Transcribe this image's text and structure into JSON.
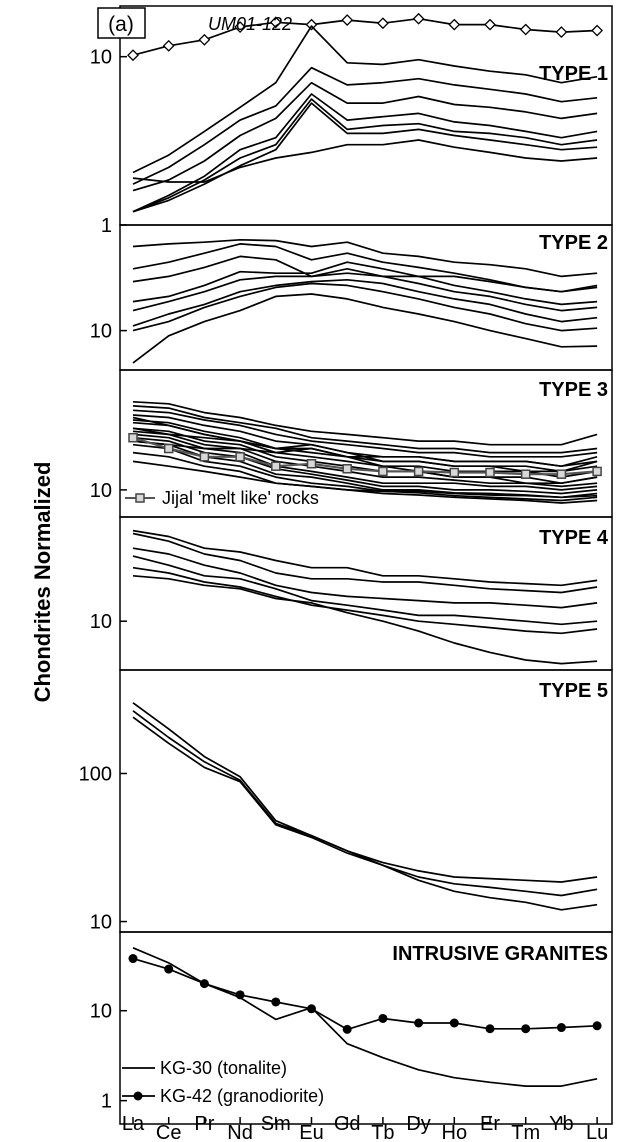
{
  "figure_label": "(a)",
  "ylabel": "Chondrites Normalized",
  "elements": [
    "La",
    "Ce",
    "Pr",
    "Nd",
    "Sm",
    "Eu",
    "Gd",
    "Tb",
    "Dy",
    "Ho",
    "Er",
    "Tm",
    "Yb",
    "Lu"
  ],
  "chart_data": [
    {
      "type": "line",
      "title": "TYPE 1",
      "yscale": "log",
      "ylim": [
        1,
        20
      ],
      "yticks": [
        {
          "value": 1,
          "label": "1"
        },
        {
          "value": 10,
          "label": "10"
        }
      ],
      "annotation": "UM01-122",
      "series": [
        {
          "name": "UM01-122",
          "marker": "diamond",
          "values": [
            10.2,
            11.6,
            12.6,
            15.0,
            16.0,
            15.5,
            16.5,
            15.8,
            16.8,
            15.5,
            15.5,
            14.5,
            14.0,
            14.3
          ]
        },
        {
          "values": [
            2.05,
            2.6,
            3.6,
            5.0,
            7.0,
            15.2,
            9.2,
            9.0,
            9.6,
            8.8,
            8.2,
            7.8,
            7.0,
            7.6
          ]
        },
        {
          "values": [
            1.75,
            2.2,
            3.0,
            4.2,
            5.1,
            8.6,
            6.8,
            7.0,
            7.4,
            6.8,
            6.4,
            6.0,
            5.4,
            5.7
          ]
        },
        {
          "values": [
            1.6,
            1.85,
            2.4,
            3.4,
            4.3,
            7.0,
            5.3,
            5.3,
            5.8,
            5.2,
            5.0,
            4.7,
            4.3,
            4.6
          ]
        },
        {
          "values": [
            1.2,
            1.5,
            1.95,
            2.8,
            3.3,
            6.0,
            4.2,
            4.4,
            4.6,
            4.1,
            3.9,
            3.6,
            3.3,
            3.6
          ]
        },
        {
          "values": [
            1.2,
            1.45,
            1.85,
            2.5,
            3.0,
            5.6,
            3.7,
            3.9,
            4.0,
            3.6,
            3.5,
            3.3,
            3.0,
            3.2
          ]
        },
        {
          "values": [
            1.2,
            1.4,
            1.75,
            2.25,
            2.8,
            5.3,
            3.5,
            3.5,
            3.7,
            3.4,
            3.2,
            3.0,
            2.8,
            2.9
          ]
        },
        {
          "values": [
            1.9,
            1.8,
            1.8,
            2.2,
            2.5,
            2.7,
            3.0,
            3.0,
            3.2,
            2.9,
            2.7,
            2.5,
            2.4,
            2.5
          ]
        }
      ]
    },
    {
      "type": "line",
      "title": "TYPE 2",
      "yscale": "log",
      "ylim": [
        4.5,
        85
      ],
      "yticks": [
        {
          "value": 10,
          "label": "10"
        }
      ],
      "series": [
        {
          "values": [
            55,
            58,
            60,
            63,
            62,
            55,
            60,
            48,
            45,
            40,
            38,
            35,
            30,
            32
          ]
        },
        {
          "values": [
            35,
            40,
            48,
            58,
            55,
            42,
            48,
            40,
            36,
            32,
            28,
            24,
            22,
            25
          ]
        },
        {
          "values": [
            27,
            30,
            36,
            45,
            42,
            30,
            35,
            30,
            26,
            22,
            20,
            17,
            15,
            16
          ]
        },
        {
          "values": [
            18,
            20,
            25,
            33,
            32,
            32,
            40,
            35,
            30,
            25,
            22,
            19,
            17,
            18
          ]
        },
        {
          "values": [
            15,
            18,
            22,
            28,
            30,
            30,
            32,
            30,
            30,
            30,
            27,
            24,
            22,
            24
          ]
        },
        {
          "values": [
            11,
            14,
            17,
            22,
            25,
            27,
            28,
            26,
            22,
            19,
            17,
            14,
            12,
            13
          ]
        },
        {
          "values": [
            10,
            12,
            16,
            20,
            24,
            26,
            25,
            22,
            19,
            16,
            14,
            11.5,
            10,
            10.5
          ]
        },
        {
          "values": [
            5.2,
            9,
            12,
            15,
            20,
            21,
            19,
            16,
            14,
            12,
            10,
            8.5,
            7.2,
            7.3
          ]
        }
      ]
    },
    {
      "type": "line",
      "title": "TYPE 3",
      "yscale": "log",
      "ylim": [
        6.8,
        55
      ],
      "yticks": [
        {
          "value": 10,
          "label": "10"
        }
      ],
      "legend": "Jijal 'melt  like' rocks",
      "series": [
        {
          "values": [
            35,
            34,
            30,
            28,
            25,
            23,
            22,
            21,
            20,
            20,
            19,
            19,
            19,
            22
          ]
        },
        {
          "values": [
            33,
            32,
            28,
            26,
            24,
            21,
            20,
            19,
            18,
            18,
            17,
            17,
            17,
            18
          ]
        },
        {
          "values": [
            31,
            30,
            27,
            25,
            22,
            20,
            19,
            18,
            17,
            17,
            16,
            16,
            16,
            17
          ]
        },
        {
          "values": [
            29,
            28,
            25,
            23,
            20,
            19,
            17,
            16,
            16,
            15,
            15,
            15,
            14,
            15
          ]
        },
        {
          "values": [
            27,
            26,
            23,
            21,
            18,
            18,
            16,
            15,
            15,
            14,
            14,
            14,
            13,
            14
          ]
        },
        {
          "values": [
            26,
            25,
            22,
            20,
            17,
            16,
            15,
            14,
            14,
            13,
            13,
            13,
            12,
            13
          ]
        },
        {
          "values": [
            24,
            23,
            20,
            19,
            16,
            15,
            14,
            13,
            13,
            12,
            12,
            12,
            11,
            12
          ]
        },
        {
          "values": [
            23,
            22,
            19,
            18,
            15,
            14,
            13,
            12,
            12,
            11.5,
            11,
            11,
            10.5,
            11
          ]
        },
        {
          "values": [
            22,
            21,
            18,
            17,
            14,
            13,
            12,
            11,
            11,
            11,
            10.5,
            10.5,
            10,
            10.5
          ]
        },
        {
          "values": [
            21,
            20,
            17,
            16,
            13.5,
            12.5,
            11.5,
            10.5,
            10.5,
            10,
            10,
            9.8,
            9.5,
            10
          ]
        },
        {
          "values": [
            20,
            19,
            16,
            15,
            12.5,
            12,
            11,
            10,
            10,
            9.6,
            9.5,
            9.3,
            9,
            9.5
          ]
        },
        {
          "values": [
            19,
            18,
            15,
            14,
            12,
            11,
            10.5,
            9.8,
            9.6,
            9.2,
            9,
            8.8,
            8.6,
            9
          ]
        },
        {
          "values": [
            17,
            16,
            14,
            13,
            11,
            10.5,
            10,
            9.5,
            9.3,
            9,
            8.8,
            8.6,
            8.3,
            8.6
          ]
        },
        {
          "values": [
            15,
            14,
            13,
            12,
            11,
            10.5,
            10,
            9.8,
            9.8,
            9.5,
            9.3,
            9.2,
            9,
            9.2
          ]
        },
        {
          "values": [
            24,
            22,
            21,
            20,
            18,
            19,
            17,
            15,
            15,
            14,
            14,
            13,
            13,
            15
          ]
        },
        {
          "values": [
            20,
            19,
            18,
            18,
            17,
            18,
            16,
            14,
            13,
            12,
            12,
            11,
            11,
            12
          ]
        },
        {
          "values": [
            28,
            25,
            22,
            20,
            18,
            17,
            16,
            16,
            16,
            15,
            15,
            15,
            14,
            16
          ]
        },
        {
          "name": "Jijal 'melt  like' rocks",
          "marker": "square",
          "values": [
            21,
            18,
            16,
            16,
            14,
            14.5,
            13.5,
            13,
            13,
            12.8,
            12.8,
            12.5,
            12.5,
            13
          ]
        }
      ]
    },
    {
      "type": "line",
      "title": "TYPE 4",
      "yscale": "log",
      "ylim": [
        4.5,
        55
      ],
      "yticks": [
        {
          "value": 10,
          "label": "10"
        }
      ],
      "series": [
        {
          "values": [
            44,
            40,
            33,
            31,
            27,
            24,
            24,
            21,
            21,
            20,
            19,
            18.5,
            18,
            19.5
          ]
        },
        {
          "values": [
            42,
            37,
            30,
            27,
            22,
            20,
            20,
            19,
            19,
            18,
            17,
            16.5,
            16,
            17.5
          ]
        },
        {
          "values": [
            33,
            30,
            25,
            22,
            18,
            16,
            15,
            14.5,
            14,
            13.5,
            13.5,
            13,
            12.5,
            13.5
          ]
        },
        {
          "values": [
            29,
            25,
            21,
            20,
            17,
            14,
            13,
            12,
            11,
            11,
            10.5,
            10,
            9.5,
            10
          ]
        },
        {
          "values": [
            24,
            22,
            19,
            17.5,
            15,
            13,
            12,
            11,
            10,
            9.5,
            9,
            8.5,
            8.2,
            8.8
          ]
        },
        {
          "values": [
            21,
            20,
            18,
            17,
            14.5,
            13.5,
            11.5,
            10,
            8.5,
            7,
            6,
            5.3,
            5,
            5.2
          ]
        }
      ]
    },
    {
      "type": "line",
      "title": "TYPE 5",
      "yscale": "log",
      "ylim": [
        8.5,
        500
      ],
      "yticks": [
        {
          "value": 10,
          "label": "10"
        },
        {
          "value": 100,
          "label": "100"
        }
      ],
      "series": [
        {
          "values": [
            300,
            200,
            130,
            95,
            48,
            38,
            30,
            25,
            22,
            20,
            19.5,
            19,
            18.5,
            20
          ]
        },
        {
          "values": [
            265,
            175,
            120,
            90,
            46,
            38,
            30,
            24,
            20,
            18,
            17,
            16,
            15,
            16.5
          ]
        },
        {
          "values": [
            240,
            160,
            110,
            88,
            45,
            37,
            29,
            24,
            19,
            16,
            14.5,
            13.5,
            12,
            13
          ]
        }
      ]
    },
    {
      "type": "line",
      "title": "INTRUSIVE GRANITES",
      "yscale": "log",
      "ylim": [
        0.55,
        75
      ],
      "yticks": [
        {
          "value": 1,
          "label": "1"
        },
        {
          "value": 10,
          "label": "10"
        }
      ],
      "series": [
        {
          "name": "KG-30 (tonalite)",
          "marker": "none",
          "values": [
            50,
            34,
            20,
            14,
            8,
            10.8,
            4.3,
            3,
            2.2,
            1.8,
            1.6,
            1.45,
            1.45,
            1.75
          ]
        },
        {
          "name": "KG-42 (granodiorite)",
          "marker": "circle",
          "values": [
            38,
            29,
            20,
            15,
            12.5,
            10.5,
            6.2,
            8.2,
            7.3,
            7.3,
            6.3,
            6.3,
            6.5,
            6.8
          ]
        }
      ]
    }
  ]
}
